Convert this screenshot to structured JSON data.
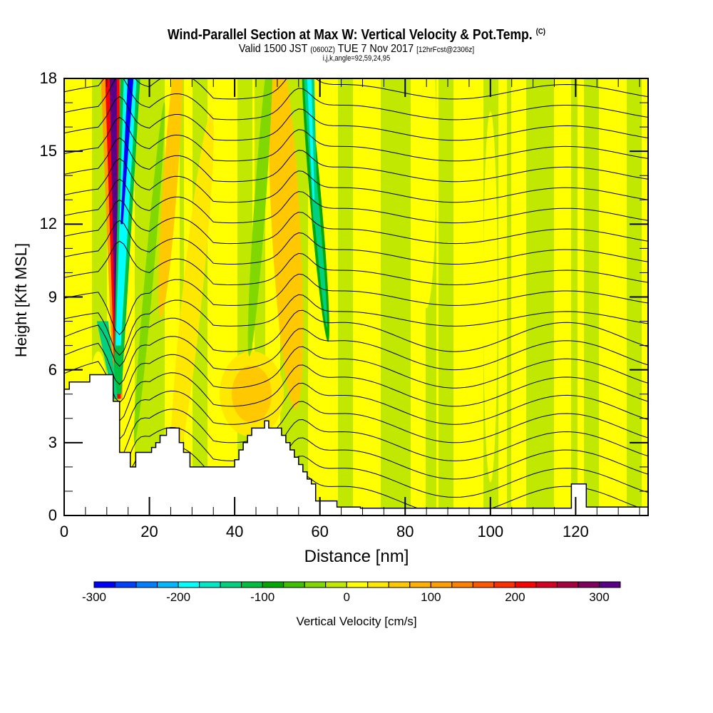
{
  "title": "Wind-Parallel Section at Max W: Vertical Velocity & Pot.Temp.",
  "title_copyright": "(C)",
  "subtitle_main_1": "Valid 1500 JST",
  "subtitle_small_1": "(0600Z)",
  "subtitle_main_2": "TUE 7 Nov 2017",
  "subtitle_small_2": "[12hrFcst@2306z]",
  "subtitle_line2": "i,j,k,angle=92,59,24,95",
  "chart_data": {
    "type": "heatmap",
    "title": "Wind-Parallel Section at Max W: Vertical Velocity & Pot.Temp.",
    "xlabel": "Distance [nm]",
    "ylabel": "Height [Kft MSL]",
    "xlim": [
      0,
      137
    ],
    "ylim": [
      0,
      18
    ],
    "x_ticks": [
      "0",
      "20",
      "40",
      "60",
      "80",
      "100",
      "120"
    ],
    "x_tick_values": [
      0,
      20,
      40,
      60,
      80,
      100,
      120
    ],
    "y_ticks": [
      "0",
      "3",
      "6",
      "9",
      "12",
      "15",
      "18"
    ],
    "y_tick_values": [
      0,
      3,
      6,
      9,
      12,
      15,
      18
    ],
    "colorbar": {
      "title": "Vertical Velocity [cm/s]",
      "tick_labels": [
        "-300",
        "-200",
        "-100",
        "0",
        "100",
        "200",
        "300"
      ],
      "tick_values": [
        -300,
        -200,
        -100,
        0,
        100,
        200,
        300
      ],
      "range": [
        -300,
        325
      ],
      "bin_width": 25,
      "colors": [
        "#0000ff",
        "#0040ff",
        "#0080ff",
        "#00b8ff",
        "#00ffff",
        "#00e8c8",
        "#00d080",
        "#00c040",
        "#00a800",
        "#40c000",
        "#80d800",
        "#c0e800",
        "#ffff00",
        "#ffe800",
        "#ffc800",
        "#ffb000",
        "#ffa000",
        "#ff8000",
        "#ff5800",
        "#ff3000",
        "#ff0000",
        "#d80020",
        "#a80040",
        "#800060",
        "#580088"
      ]
    },
    "terrain": {
      "distance": [
        0,
        0,
        1.2,
        1.2,
        6,
        6,
        11.5,
        11.5,
        13,
        13,
        15.5,
        15.5,
        16.8,
        16.8,
        20.5,
        20.5,
        21.5,
        21.5,
        22.5,
        22.5,
        24,
        24,
        27,
        27,
        28,
        28,
        29.5,
        29.5,
        33,
        33,
        40,
        40,
        41,
        41,
        42,
        42,
        43,
        43,
        44,
        44,
        47,
        47,
        48,
        48,
        51,
        51,
        52,
        52,
        53,
        53,
        54,
        54,
        55,
        55,
        56,
        56,
        57,
        57,
        58,
        58,
        59,
        59,
        64,
        64,
        69.5,
        69.5,
        119,
        119,
        122.5,
        122.5,
        126,
        126,
        137,
        137
      ],
      "height_kft": [
        0,
        5.2,
        5.2,
        5.5,
        5.5,
        5.8,
        5.8,
        4.7,
        4.7,
        2.6,
        2.6,
        2.0,
        2.0,
        2.6,
        2.6,
        2.8,
        2.8,
        3.0,
        3.0,
        3.3,
        3.3,
        3.6,
        3.6,
        3.0,
        3.0,
        2.6,
        2.6,
        2.0,
        2.0,
        2.0,
        2.0,
        2.3,
        2.3,
        2.7,
        2.7,
        3.0,
        3.0,
        3.3,
        3.3,
        3.6,
        3.6,
        3.9,
        3.9,
        3.6,
        3.6,
        3.3,
        3.3,
        3.0,
        3.0,
        2.7,
        2.7,
        2.4,
        2.4,
        2.1,
        2.1,
        1.8,
        1.8,
        1.5,
        1.5,
        1.3,
        1.3,
        0.6,
        0.6,
        0.35,
        0.35,
        0.3,
        0.3,
        1.3,
        1.3,
        0.35,
        0.35,
        0.35,
        0.35,
        0
      ]
    },
    "features": {
      "updraft_core": {
        "distance_top": 12,
        "distance_bottom": 12.5,
        "max_cm_s": 325
      },
      "downdraft_core": {
        "distance_top": 16,
        "distance_bottom": 12.5,
        "min_cm_s": -300
      },
      "secondary_downdraft": {
        "distance": 58,
        "min_cm_s": -125
      }
    },
    "contour_field": "Potential Temperature",
    "contour_count": 24
  }
}
